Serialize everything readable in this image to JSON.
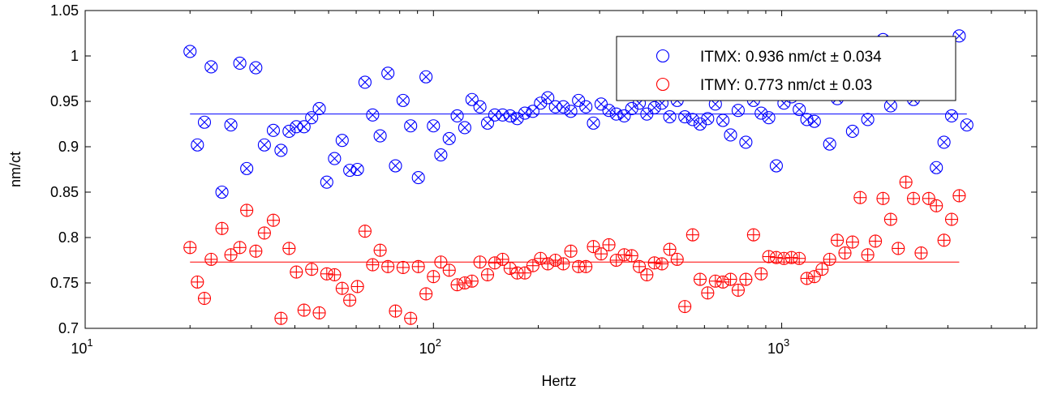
{
  "chart_data": {
    "type": "scatter",
    "xscale": "log",
    "xlim": [
      10,
      5400
    ],
    "ylim": [
      0.7,
      1.05
    ],
    "xlabel": "Hertz",
    "ylabel": "nm/ct",
    "x_ticks": [
      {
        "value": 10,
        "base": "10",
        "exp": "1"
      },
      {
        "value": 100,
        "base": "10",
        "exp": "2"
      },
      {
        "value": 1000,
        "base": "10",
        "exp": "3"
      }
    ],
    "y_ticks": [
      {
        "value": 0.7,
        "label": "0.7"
      },
      {
        "value": 0.75,
        "label": "0.75"
      },
      {
        "value": 0.8,
        "label": "0.8"
      },
      {
        "value": 0.85,
        "label": "0.85"
      },
      {
        "value": 0.9,
        "label": "0.9"
      },
      {
        "value": 0.95,
        "label": "0.95"
      },
      {
        "value": 1.0,
        "label": "1"
      },
      {
        "value": 1.05,
        "label": "1.05"
      }
    ],
    "grid": false,
    "legend_position": "top-right",
    "series": [
      {
        "name": "ITMX: 0.936 nm/ct ± 0.034",
        "color": "#0000ff",
        "marker": "circle-x",
        "fit_value": 0.936,
        "points": [
          [
            20,
            1.005
          ],
          [
            21,
            0.902
          ],
          [
            22,
            0.927
          ],
          [
            23,
            0.988
          ],
          [
            24.7,
            0.85
          ],
          [
            26.2,
            0.924
          ],
          [
            27.8,
            0.992
          ],
          [
            29.1,
            0.876
          ],
          [
            30.9,
            0.987
          ],
          [
            32.7,
            0.902
          ],
          [
            34.7,
            0.918
          ],
          [
            36.5,
            0.896
          ],
          [
            38.5,
            0.917
          ],
          [
            40.4,
            0.922
          ],
          [
            42.5,
            0.922
          ],
          [
            44.7,
            0.932
          ],
          [
            47,
            0.942
          ],
          [
            49.4,
            0.861
          ],
          [
            52,
            0.887
          ],
          [
            54.7,
            0.907
          ],
          [
            57.5,
            0.874
          ],
          [
            60.5,
            0.875
          ],
          [
            63.6,
            0.971
          ],
          [
            66.9,
            0.935
          ],
          [
            70.3,
            0.912
          ],
          [
            74,
            0.981
          ],
          [
            77.8,
            0.879
          ],
          [
            81.8,
            0.951
          ],
          [
            86,
            0.923
          ],
          [
            90.5,
            0.866
          ],
          [
            95.2,
            0.977
          ],
          [
            100,
            0.923
          ],
          [
            105,
            0.891
          ],
          [
            111,
            0.909
          ],
          [
            117,
            0.934
          ],
          [
            123,
            0.921
          ],
          [
            129,
            0.952
          ],
          [
            136,
            0.944
          ],
          [
            143,
            0.926
          ],
          [
            150,
            0.935
          ],
          [
            158,
            0.935
          ],
          [
            166,
            0.934
          ],
          [
            174,
            0.931
          ],
          [
            183,
            0.937
          ],
          [
            193,
            0.939
          ],
          [
            203,
            0.948
          ],
          [
            213,
            0.954
          ],
          [
            224,
            0.944
          ],
          [
            236,
            0.944
          ],
          [
            248,
            0.939
          ],
          [
            261,
            0.951
          ],
          [
            274,
            0.944
          ],
          [
            288,
            0.926
          ],
          [
            303,
            0.947
          ],
          [
            319,
            0.94
          ],
          [
            335,
            0.936
          ],
          [
            353,
            0.934
          ],
          [
            371,
            0.942
          ],
          [
            390,
            0.948
          ],
          [
            410,
            0.936
          ],
          [
            431,
            0.943
          ],
          [
            453,
            0.948
          ],
          [
            477,
            0.933
          ],
          [
            501,
            0.951
          ],
          [
            527,
            0.933
          ],
          [
            555,
            0.93
          ],
          [
            583,
            0.925
          ],
          [
            613,
            0.931
          ],
          [
            645,
            0.947
          ],
          [
            678,
            0.929
          ],
          [
            713,
            0.913
          ],
          [
            750,
            0.94
          ],
          [
            789,
            0.905
          ],
          [
            830,
            0.951
          ],
          [
            873,
            0.937
          ],
          [
            918,
            0.932
          ],
          [
            965,
            0.879
          ],
          [
            1015,
            0.948
          ],
          [
            1067,
            0.955
          ],
          [
            1123,
            0.941
          ],
          [
            1181,
            0.93
          ],
          [
            1241,
            0.928
          ],
          [
            1306,
            0.958
          ],
          [
            1373,
            0.903
          ],
          [
            1444,
            0.953
          ],
          [
            1519,
            0.965
          ],
          [
            1597,
            0.917
          ],
          [
            1680,
            0.96
          ],
          [
            1766,
            0.93
          ],
          [
            1858,
            0.968
          ],
          [
            1954,
            1.018
          ],
          [
            2055,
            0.945
          ],
          [
            2161,
            0.975
          ],
          [
            2273,
            0.989
          ],
          [
            2390,
            0.952
          ],
          [
            2514,
            0.993
          ],
          [
            2644,
            0.992
          ],
          [
            2780,
            0.877
          ],
          [
            2924,
            0.905
          ],
          [
            3075,
            0.934
          ],
          [
            3234,
            1.022
          ],
          [
            3401,
            0.924
          ]
        ]
      },
      {
        "name": "ITMY: 0.773 nm/ct ± 0.03",
        "color": "#ff0000",
        "marker": "circle-plus",
        "fit_value": 0.773,
        "points": [
          [
            20,
            0.789
          ],
          [
            21,
            0.751
          ],
          [
            22,
            0.733
          ],
          [
            23,
            0.776
          ],
          [
            24.7,
            0.81
          ],
          [
            26.2,
            0.781
          ],
          [
            27.8,
            0.789
          ],
          [
            29.1,
            0.83
          ],
          [
            30.9,
            0.785
          ],
          [
            32.7,
            0.805
          ],
          [
            34.7,
            0.819
          ],
          [
            36.5,
            0.711
          ],
          [
            38.5,
            0.788
          ],
          [
            40.4,
            0.762
          ],
          [
            42.5,
            0.72
          ],
          [
            44.7,
            0.765
          ],
          [
            47,
            0.717
          ],
          [
            49.4,
            0.76
          ],
          [
            52,
            0.759
          ],
          [
            54.7,
            0.744
          ],
          [
            57.5,
            0.731
          ],
          [
            60.5,
            0.746
          ],
          [
            63.6,
            0.807
          ],
          [
            66.9,
            0.77
          ],
          [
            70.3,
            0.786
          ],
          [
            74,
            0.768
          ],
          [
            77.8,
            0.719
          ],
          [
            81.8,
            0.767
          ],
          [
            86,
            0.711
          ],
          [
            90.5,
            0.768
          ],
          [
            95.2,
            0.738
          ],
          [
            100,
            0.757
          ],
          [
            105,
            0.773
          ],
          [
            111,
            0.764
          ],
          [
            117,
            0.748
          ],
          [
            123,
            0.75
          ],
          [
            129,
            0.752
          ],
          [
            136,
            0.773
          ],
          [
            143,
            0.759
          ],
          [
            150,
            0.772
          ],
          [
            158,
            0.776
          ],
          [
            166,
            0.766
          ],
          [
            174,
            0.761
          ],
          [
            183,
            0.761
          ],
          [
            193,
            0.769
          ],
          [
            203,
            0.777
          ],
          [
            213,
            0.771
          ],
          [
            224,
            0.775
          ],
          [
            236,
            0.771
          ],
          [
            248,
            0.785
          ],
          [
            261,
            0.768
          ],
          [
            274,
            0.768
          ],
          [
            288,
            0.79
          ],
          [
            303,
            0.782
          ],
          [
            319,
            0.792
          ],
          [
            335,
            0.775
          ],
          [
            353,
            0.781
          ],
          [
            371,
            0.78
          ],
          [
            390,
            0.768
          ],
          [
            410,
            0.759
          ],
          [
            431,
            0.772
          ],
          [
            453,
            0.771
          ],
          [
            477,
            0.787
          ],
          [
            501,
            0.776
          ],
          [
            527,
            0.724
          ],
          [
            555,
            0.803
          ],
          [
            583,
            0.754
          ],
          [
            613,
            0.739
          ],
          [
            645,
            0.752
          ],
          [
            678,
            0.751
          ],
          [
            713,
            0.754
          ],
          [
            750,
            0.742
          ],
          [
            789,
            0.754
          ],
          [
            830,
            0.803
          ],
          [
            873,
            0.76
          ],
          [
            918,
            0.779
          ],
          [
            965,
            0.778
          ],
          [
            1015,
            0.777
          ],
          [
            1067,
            0.778
          ],
          [
            1123,
            0.777
          ],
          [
            1181,
            0.755
          ],
          [
            1241,
            0.757
          ],
          [
            1306,
            0.765
          ],
          [
            1373,
            0.776
          ],
          [
            1444,
            0.797
          ],
          [
            1519,
            0.783
          ],
          [
            1597,
            0.795
          ],
          [
            1680,
            0.844
          ],
          [
            1766,
            0.781
          ],
          [
            1858,
            0.796
          ],
          [
            1954,
            0.843
          ],
          [
            2055,
            0.82
          ],
          [
            2161,
            0.788
          ],
          [
            2273,
            0.861
          ],
          [
            2390,
            0.843
          ],
          [
            2514,
            0.783
          ],
          [
            2644,
            0.843
          ],
          [
            2780,
            0.835
          ],
          [
            2924,
            0.797
          ],
          [
            3075,
            0.82
          ],
          [
            3234,
            0.846
          ]
        ]
      }
    ]
  }
}
